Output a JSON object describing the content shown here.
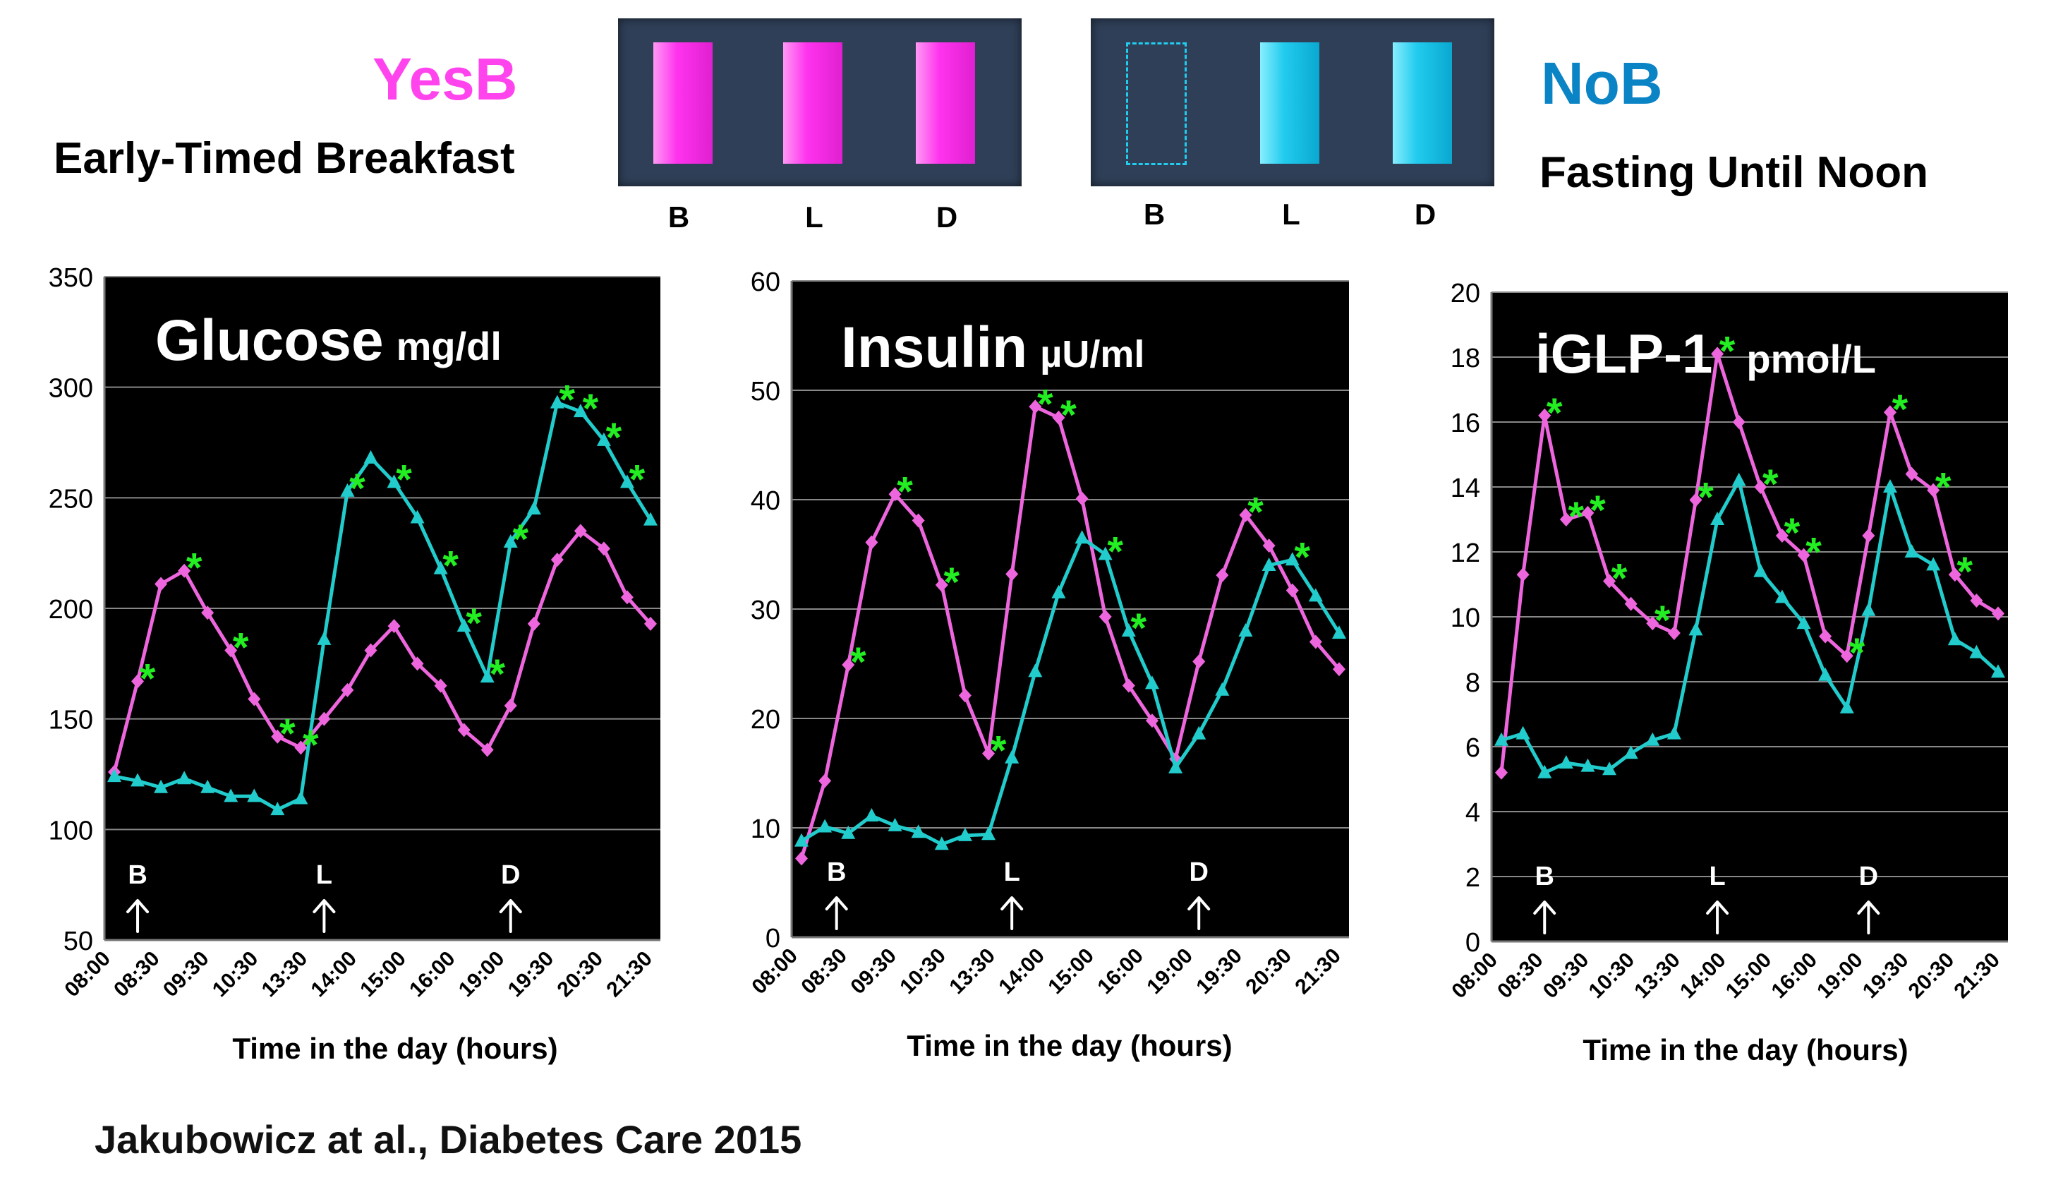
{
  "header": {
    "yesb": {
      "label": "YesB",
      "subtitle": "Early-Timed Breakfast",
      "color": "#ff44ee"
    },
    "nob": {
      "label": "NoB",
      "subtitle": "Fasting Until Noon",
      "color": "#0b84c6"
    },
    "meal_labels": [
      "B",
      "L",
      "D"
    ]
  },
  "colors": {
    "yesb_series": "#ee66dd",
    "nob_series": "#22cccc",
    "significance": "#22ee22",
    "plot_bg": "#000000",
    "grid": "#888888"
  },
  "citation": "Jakubowicz  at al., Diabetes Care  2015",
  "chart_data": [
    {
      "type": "line",
      "title": "Glucose",
      "units": "mg/dl",
      "xlabel": "Time  in the day (hours)",
      "ylim": [
        50,
        350
      ],
      "yticks": [
        50,
        100,
        150,
        200,
        250,
        300,
        350
      ],
      "xtick_labels": [
        "08:00",
        "08:30",
        "09:30",
        "10:30",
        "13:30",
        "14:00",
        "15:00",
        "16:00",
        "19:00",
        "19:30",
        "20:30",
        "21:30"
      ],
      "meal_markers": [
        {
          "label": "B",
          "index": 1
        },
        {
          "label": "L",
          "index": 9
        },
        {
          "label": "D",
          "index": 17
        }
      ],
      "n_points": 24,
      "series": [
        {
          "name": "YesB",
          "marker": "diamond",
          "values": [
            126,
            167,
            211,
            217,
            198,
            181,
            159,
            142,
            137,
            150,
            163,
            181,
            192,
            175,
            165,
            145,
            136,
            156,
            193,
            222,
            235,
            227,
            205,
            193
          ]
        },
        {
          "name": "NoB",
          "marker": "triangle",
          "values": [
            124,
            122,
            119,
            123,
            119,
            115,
            115,
            109,
            114,
            186,
            253,
            268,
            257,
            241,
            218,
            192,
            169,
            230,
            245,
            293,
            289,
            276,
            257,
            240
          ]
        }
      ],
      "significance_indices": [
        1,
        3,
        5,
        7,
        8,
        10,
        12,
        14,
        15,
        16,
        17,
        19,
        20,
        21,
        22
      ]
    },
    {
      "type": "line",
      "title": "Insulin",
      "units": "µU/ml",
      "xlabel": "Time  in the day (hours)",
      "ylim": [
        0,
        60
      ],
      "yticks": [
        0,
        10,
        20,
        30,
        40,
        50,
        60
      ],
      "xtick_labels": [
        "08:00",
        "08:30",
        "09:30",
        "10:30",
        "13:30",
        "14:00",
        "15:00",
        "16:00",
        "19:00",
        "19:30",
        "20:30",
        "21:30"
      ],
      "meal_markers": [
        {
          "label": "B",
          "index": 1.5
        },
        {
          "label": "L",
          "index": 9
        },
        {
          "label": "D",
          "index": 17
        }
      ],
      "n_points": 24,
      "series": [
        {
          "name": "YesB",
          "marker": "diamond",
          "values": [
            7.2,
            14.3,
            24.9,
            36.1,
            40.5,
            38.1,
            32.2,
            22.1,
            16.8,
            33.2,
            48.5,
            47.5,
            40.1,
            29.3,
            23.0,
            19.8,
            16.3,
            25.2,
            33.1,
            38.6,
            35.8,
            31.7,
            27.0,
            24.5
          ]
        },
        {
          "name": "NoB",
          "marker": "triangle",
          "values": [
            8.8,
            10.1,
            9.5,
            11.1,
            10.2,
            9.6,
            8.5,
            9.3,
            9.4,
            16.4,
            24.3,
            31.5,
            36.5,
            35.0,
            28.0,
            23.2,
            15.5,
            18.6,
            22.6,
            28.0,
            34.0,
            34.5,
            31.2,
            27.8
          ]
        }
      ],
      "significance_indices": [
        2,
        4,
        6,
        8,
        10,
        11,
        13,
        14,
        19,
        21
      ]
    },
    {
      "type": "line",
      "title": "iGLP-1",
      "units": "pmol/L",
      "xlabel": "Time  in the day (hours)",
      "ylim": [
        0,
        20
      ],
      "yticks": [
        0,
        2,
        4,
        6,
        8,
        10,
        12,
        14,
        16,
        18,
        20
      ],
      "xtick_labels": [
        "08:00",
        "08:30",
        "09:30",
        "10:30",
        "13:30",
        "14:00",
        "15:00",
        "16:00",
        "19:00",
        "19:30",
        "20:30",
        "21:30"
      ],
      "meal_markers": [
        {
          "label": "B",
          "index": 2
        },
        {
          "label": "L",
          "index": 10
        },
        {
          "label": "D",
          "index": 17
        }
      ],
      "n_points": 24,
      "series": [
        {
          "name": "YesB",
          "marker": "diamond",
          "values": [
            5.2,
            11.3,
            16.2,
            13.0,
            13.2,
            11.1,
            10.4,
            9.8,
            9.5,
            13.6,
            18.1,
            16.0,
            14.0,
            12.5,
            11.9,
            9.4,
            8.8,
            12.5,
            16.3,
            14.4,
            13.9,
            11.3,
            10.5,
            10.1
          ]
        },
        {
          "name": "NoB",
          "marker": "triangle",
          "values": [
            6.2,
            6.4,
            5.2,
            5.5,
            5.4,
            5.3,
            5.8,
            6.2,
            6.4,
            9.6,
            13.0,
            14.2,
            11.4,
            10.6,
            9.8,
            8.2,
            7.2,
            10.2,
            14.0,
            12.0,
            11.6,
            9.3,
            8.9,
            8.3
          ]
        }
      ],
      "significance_indices": [
        2,
        3,
        4,
        5,
        7,
        9,
        10,
        12,
        13,
        14,
        16,
        18,
        20,
        21
      ]
    }
  ]
}
